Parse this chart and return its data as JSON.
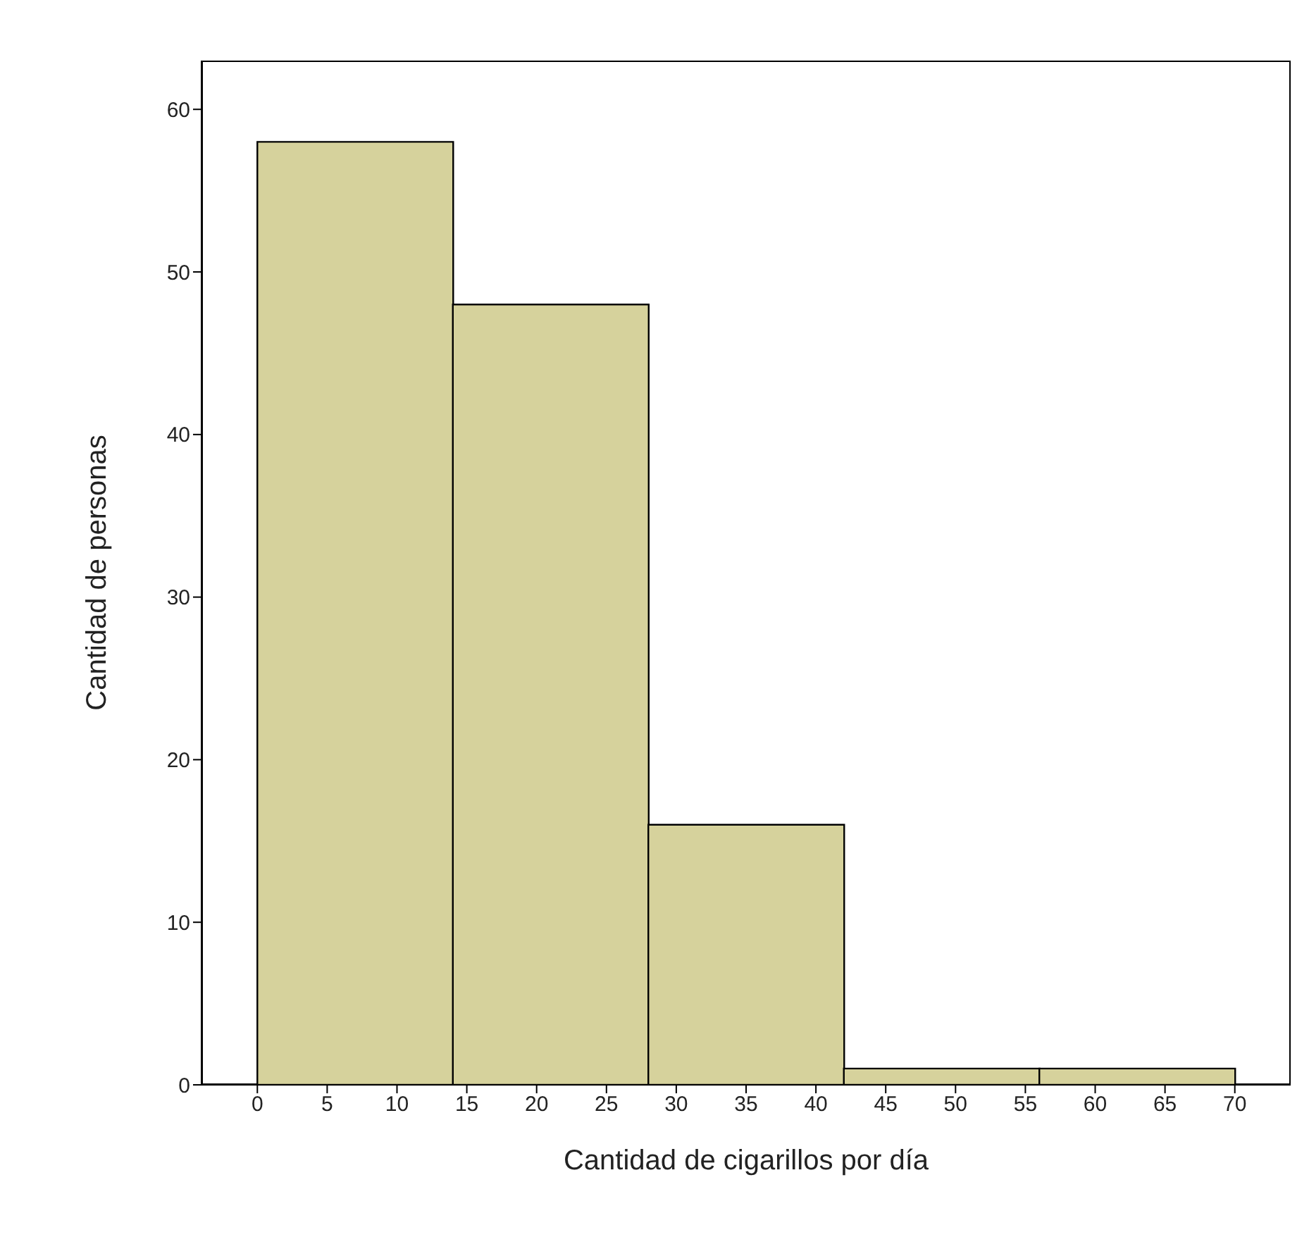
{
  "chart_data": {
    "type": "histogram",
    "xlabel": "Cantidad de cigarillos por día",
    "ylabel": "Cantidad de personas",
    "bins": [
      0,
      14,
      28,
      42,
      56,
      70
    ],
    "values": [
      58,
      48,
      16,
      1,
      1
    ],
    "color": "#d6d29c",
    "xlim": [
      -4,
      74
    ],
    "xticks": [
      0,
      5,
      10,
      15,
      20,
      25,
      30,
      35,
      40,
      45,
      50,
      55,
      60,
      65,
      70
    ],
    "ylim": [
      0,
      63
    ],
    "yticks": [
      0,
      10,
      20,
      30,
      40,
      50,
      60
    ],
    "grid": false,
    "legend": false
  }
}
